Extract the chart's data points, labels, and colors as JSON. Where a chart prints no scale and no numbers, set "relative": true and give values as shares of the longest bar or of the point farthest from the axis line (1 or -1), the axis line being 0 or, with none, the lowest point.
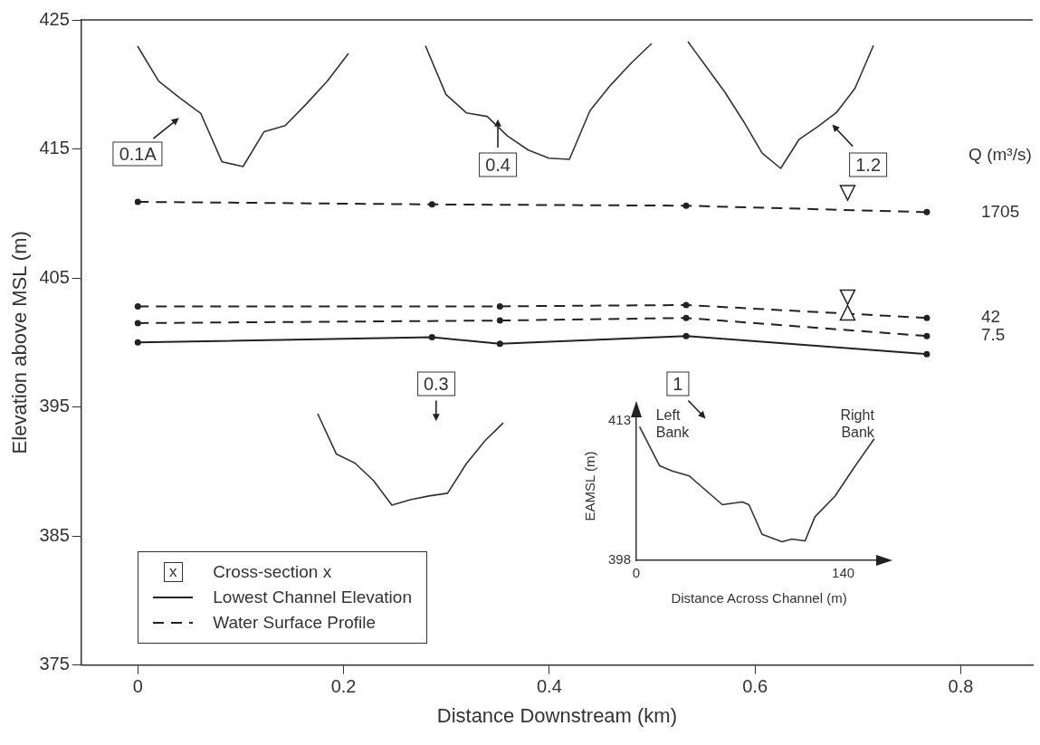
{
  "chart_data": [
    {
      "type": "line",
      "xlabel": "Distance Downstream (km)",
      "ylabel": "Elevation above MSL (m)",
      "legend_title": "Q (m³/s)",
      "xlim": [
        -0.055,
        0.87
      ],
      "ylim": [
        375,
        425
      ],
      "xticks": [
        0,
        0.2,
        0.4,
        0.6,
        0.8
      ],
      "yticks": [
        375,
        385,
        395,
        405,
        415,
        425
      ],
      "grid": false,
      "legend": "bottom left",
      "marker": "circle",
      "annotations": [
        "0.1A",
        "0.4",
        "1.2",
        "0.3",
        "1",
        "x",
        "Cross-section x",
        "Water Surface Profile"
      ],
      "series": [
        {
          "name": "Lowest Channel Elevation",
          "color": "#222222",
          "line_style": "solid",
          "x": [
            0,
            0.286,
            0.352,
            0.533,
            0.767
          ],
          "values": [
            400.0,
            400.4,
            399.9,
            400.5,
            399.1
          ]
        },
        {
          "name": "1705",
          "color": "#222222",
          "line_style": "dashed",
          "x": [
            0,
            0.286,
            0.533,
            0.767
          ],
          "values": [
            410.9,
            410.7,
            410.6,
            410.1
          ]
        },
        {
          "name": "42",
          "color": "#222222",
          "line_style": "dashed",
          "x": [
            0,
            0.352,
            0.533,
            0.767
          ],
          "values": [
            402.8,
            402.8,
            402.9,
            401.9
          ]
        },
        {
          "name": "7.5",
          "color": "#222222",
          "line_style": "dashed",
          "x": [
            0,
            0.352,
            0.533,
            0.767
          ],
          "values": [
            401.5,
            401.7,
            401.9,
            400.5
          ]
        }
      ]
    },
    {
      "type": "line",
      "relative": true,
      "categories": [
        null,
        null,
        null,
        null,
        null,
        null,
        null,
        null,
        null,
        null,
        null
      ],
      "series": [
        {
          "color": "#333333",
          "values": [
            1,
            0.71,
            0.57,
            0.44,
            0.04,
            0,
            0.29,
            0.34,
            0.52,
            0.71,
            0.94
          ]
        }
      ]
    },
    {
      "type": "line",
      "relative": true,
      "categories": [
        null,
        null,
        null,
        null,
        null,
        null,
        null,
        null,
        null,
        null,
        null,
        null
      ],
      "series": [
        {
          "color": "#333333",
          "values": [
            0.98,
            0.56,
            0.4,
            0.37,
            0.2,
            0.08,
            0.01,
            0,
            0.42,
            0.64,
            0.83,
            1
          ]
        }
      ]
    },
    {
      "type": "line",
      "relative": true,
      "categories": [
        null,
        null,
        null,
        null,
        null,
        null,
        null,
        null,
        null,
        null,
        null
      ],
      "series": [
        {
          "color": "#333333",
          "values": [
            1,
            0.8,
            0.6,
            0.37,
            0.12,
            0,
            0.23,
            0.33,
            0.44,
            0.63,
            0.97
          ]
        }
      ]
    },
    {
      "type": "line",
      "relative": true,
      "categories": [
        null,
        null,
        null,
        null,
        null,
        null,
        null,
        null,
        null,
        null,
        null
      ],
      "series": [
        {
          "color": "#333333",
          "values": [
            1,
            0.56,
            0.46,
            0.27,
            0,
            0.06,
            0.1,
            0.13,
            0.45,
            0.7,
            0.9
          ]
        }
      ]
    },
    {
      "type": "line",
      "xlabel": "Distance Across Channel (m)",
      "ylabel": "EAMSL (m)",
      "xlim": [
        0,
        166
      ],
      "ylim": [
        398,
        414
      ],
      "xticks": [
        0,
        140
      ],
      "yticks": [
        398,
        413
      ],
      "grid": false,
      "marker": "none",
      "annotations": [
        "Left Bank",
        "Right Bank"
      ],
      "series": [
        {
          "color": "#333333",
          "x": [
            2.2,
            15.7,
            24.6,
            35.8,
            58.2,
            71.7,
            76.2,
            85.1,
            98.6,
            105.3,
            114.2,
            120.9,
            134.4,
            147.8,
            161
          ],
          "values": [
            412.4,
            408.2,
            407.6,
            407.1,
            404.0,
            404.3,
            404.0,
            400.8,
            400.0,
            400.3,
            400.1,
            402.7,
            404.9,
            408.1,
            411.1
          ]
        }
      ]
    }
  ]
}
